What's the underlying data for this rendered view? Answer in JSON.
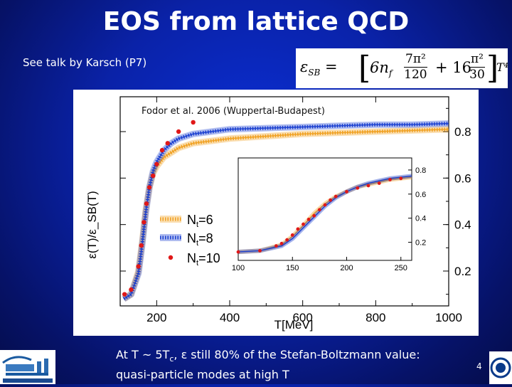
{
  "slide": {
    "title": "EOS from lattice QCD",
    "reference": "See talk by Karsch (P7)",
    "footer_line1_a": "At T ~ 5T",
    "footer_line1_sub": "c",
    "footer_line1_b": ", ε still 80% of the Stefan-Boltzmann value:",
    "footer_line2": "quasi-particle modes at high T",
    "page_number": "4"
  },
  "formula": {
    "lhs": "ε",
    "lhs_sub": "SB",
    "eq": "=",
    "coef": "6n",
    "coef_sub": "f",
    "frac1_num": "7π²",
    "frac1_den": "120",
    "plus": "+ 16",
    "frac2_num": "π²",
    "frac2_den": "30",
    "rhs": "T⁴"
  },
  "chart_data": {
    "type": "line",
    "annotation": "Fodor et al. 2006 (Wuppertal-Budapest)",
    "xlabel": "T[MeV]",
    "ylabel": "ε(T)/ε_SB(T)",
    "xlim": [
      100,
      1000
    ],
    "ylim": [
      0.05,
      0.95
    ],
    "x_ticks": [
      "200",
      "400",
      "600",
      "800",
      "1000"
    ],
    "y_ticks": [
      "0.2",
      "0.4",
      "0.6",
      "0.8"
    ],
    "legend": [
      "N_t=6",
      "N_t=8",
      "N_t=10"
    ],
    "legend_text": {
      "n6": "N",
      "n6_sub": "t",
      "n6_rest": "=6",
      "n8": "N",
      "n8_sub": "t",
      "n8_rest": "=8",
      "n10": "N",
      "n10_sub": "t",
      "n10_rest": "=10"
    },
    "series": [
      {
        "name": "N_t=6",
        "color": "#f0a020",
        "style": "band",
        "x": [
          110,
          130,
          150,
          160,
          170,
          180,
          190,
          200,
          220,
          240,
          260,
          300,
          350,
          400,
          500,
          600,
          700,
          800,
          900,
          1000
        ],
        "y": [
          0.08,
          0.1,
          0.2,
          0.32,
          0.46,
          0.56,
          0.62,
          0.65,
          0.69,
          0.71,
          0.73,
          0.75,
          0.76,
          0.77,
          0.78,
          0.79,
          0.795,
          0.8,
          0.805,
          0.81
        ]
      },
      {
        "name": "N_t=8",
        "color": "#1a3fd0",
        "style": "band",
        "x": [
          110,
          130,
          150,
          160,
          170,
          180,
          190,
          200,
          220,
          240,
          260,
          300,
          350,
          400,
          500,
          600,
          700,
          800,
          900,
          1000
        ],
        "y": [
          0.08,
          0.1,
          0.19,
          0.31,
          0.45,
          0.56,
          0.63,
          0.67,
          0.72,
          0.75,
          0.77,
          0.79,
          0.8,
          0.81,
          0.815,
          0.82,
          0.825,
          0.83,
          0.83,
          0.835
        ]
      },
      {
        "name": "N_t=10",
        "color": "#e01818",
        "style": "points",
        "x": [
          112,
          130,
          150,
          158,
          165,
          172,
          180,
          190,
          200,
          215,
          230,
          260,
          300
        ],
        "y": [
          0.1,
          0.12,
          0.22,
          0.31,
          0.41,
          0.49,
          0.56,
          0.61,
          0.66,
          0.72,
          0.75,
          0.8,
          0.84
        ]
      }
    ],
    "inset": {
      "xlim": [
        100,
        260
      ],
      "ylim": [
        0.05,
        0.9
      ],
      "x_ticks": [
        "100",
        "150",
        "200",
        "250"
      ],
      "y_ticks": [
        "0.2",
        "0.4",
        "0.6",
        "0.8"
      ],
      "series": [
        {
          "name": "N_t=6",
          "color": "#f0a020",
          "x": [
            100,
            120,
            140,
            150,
            160,
            170,
            180,
            190,
            200,
            210,
            220,
            230,
            240,
            250,
            260
          ],
          "y": [
            0.12,
            0.13,
            0.18,
            0.25,
            0.34,
            0.44,
            0.52,
            0.58,
            0.62,
            0.66,
            0.68,
            0.7,
            0.72,
            0.73,
            0.74
          ]
        },
        {
          "name": "N_t=8",
          "color": "#1a3fd0",
          "x": [
            100,
            120,
            140,
            150,
            160,
            170,
            180,
            190,
            200,
            210,
            220,
            230,
            240,
            250,
            260
          ],
          "y": [
            0.12,
            0.13,
            0.17,
            0.23,
            0.32,
            0.41,
            0.5,
            0.57,
            0.62,
            0.66,
            0.69,
            0.71,
            0.73,
            0.74,
            0.75
          ]
        },
        {
          "name": "N_t=10",
          "color": "#e01818",
          "x": [
            100,
            120,
            135,
            140,
            145,
            150,
            155,
            160,
            165,
            170,
            175,
            180,
            185,
            190,
            200,
            210,
            220,
            230,
            240,
            250
          ],
          "y": [
            0.12,
            0.13,
            0.17,
            0.19,
            0.22,
            0.26,
            0.31,
            0.35,
            0.39,
            0.42,
            0.47,
            0.51,
            0.55,
            0.58,
            0.62,
            0.65,
            0.67,
            0.69,
            0.72,
            0.73
          ]
        }
      ]
    }
  }
}
